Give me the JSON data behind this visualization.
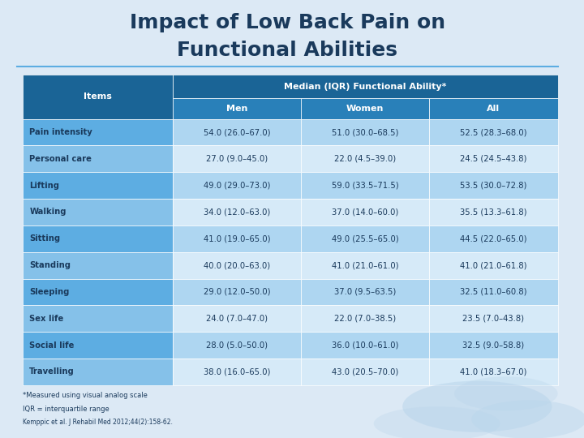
{
  "title_line1": "Impact of Low Back Pain on",
  "title_line2": "Functional Abilities",
  "header1": "Median (IQR) Functional Ability*",
  "col_items": "Items",
  "col_men": "Men",
  "col_women": "Women",
  "col_all": "All",
  "rows": [
    [
      "Pain intensity",
      "54.0 (26.0–67.0)",
      "51.0 (30.0–68.5)",
      "52.5 (28.3–68.0)"
    ],
    [
      "Personal care",
      "27.0 (9.0–45.0)",
      "22.0 (4.5–39.0)",
      "24.5 (24.5–43.8)"
    ],
    [
      "Lifting",
      "49.0 (29.0–73.0)",
      "59.0 (33.5–71.5)",
      "53.5 (30.0–72.8)"
    ],
    [
      "Walking",
      "34.0 (12.0–63.0)",
      "37.0 (14.0–60.0)",
      "35.5 (13.3–61.8)"
    ],
    [
      "Sitting",
      "41.0 (19.0–65.0)",
      "49.0 (25.5–65.0)",
      "44.5 (22.0–65.0)"
    ],
    [
      "Standing",
      "40.0 (20.0–63.0)",
      "41.0 (21.0–61.0)",
      "41.0 (21.0–61.8)"
    ],
    [
      "Sleeping",
      "29.0 (12.0–50.0)",
      "37.0 (9.5–63.5)",
      "32.5 (11.0–60.8)"
    ],
    [
      "Sex life",
      "24.0 (7.0–47.0)",
      "22.0 (7.0–38.5)",
      "23.5 (7.0–43.8)"
    ],
    [
      "Social life",
      "28.0 (5.0–50.0)",
      "36.0 (10.0–61.0)",
      "32.5 (9.0–58.8)"
    ],
    [
      "Travelling",
      "38.0 (16.0–65.0)",
      "43.0 (20.5–70.0)",
      "41.0 (18.3–67.0)"
    ]
  ],
  "footnote1": "*Measured using visual analog scale",
  "footnote2": "IQR = interquartile range",
  "footnote3": "Kemppic et al. J Rehabil Med 2012;44(2):158-62.",
  "bg_color": "#dce9f5",
  "header_dark_blue": "#1a6496",
  "header_mid_blue": "#2980b9",
  "row_odd_color": "#aed6f1",
  "row_even_color": "#d6eaf8",
  "row_label_odd": "#5dade2",
  "row_label_even": "#85c1e9",
  "text_dark": "#1a3a5c",
  "text_white": "#ffffff",
  "title_color": "#1a3a5c",
  "divider_color": "#5dade2"
}
